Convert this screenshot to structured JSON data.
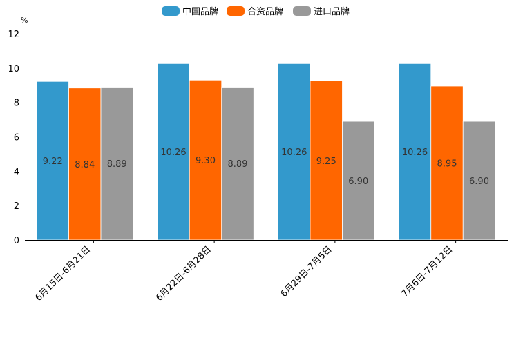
{
  "chart_data": {
    "type": "bar",
    "unit": "%",
    "categories": [
      "6月15日-6月21日",
      "6月22日-6月28日",
      "6月29日-7月5日",
      "7月6日-7月12日"
    ],
    "series": [
      {
        "name": "中国品牌",
        "color": "#3399cc",
        "values": [
          9.22,
          10.26,
          10.26,
          10.26
        ],
        "labels": [
          "9.22",
          "10.26",
          "10.26",
          "10.26"
        ]
      },
      {
        "name": "合资品牌",
        "color": "#ff6600",
        "values": [
          8.84,
          9.3,
          9.25,
          8.95
        ],
        "labels": [
          "8.84",
          "9.30",
          "9.25",
          "8.95"
        ]
      },
      {
        "name": "进口品牌",
        "color": "#999999",
        "values": [
          8.89,
          8.89,
          6.9,
          6.9
        ],
        "labels": [
          "8.89",
          "8.89",
          "6.90",
          "6.90"
        ]
      }
    ],
    "ylim": [
      0,
      12
    ],
    "yticks": [
      "0",
      "2",
      "4",
      "6",
      "8",
      "10",
      "12"
    ],
    "legend_position": "top-center",
    "grid": false
  }
}
